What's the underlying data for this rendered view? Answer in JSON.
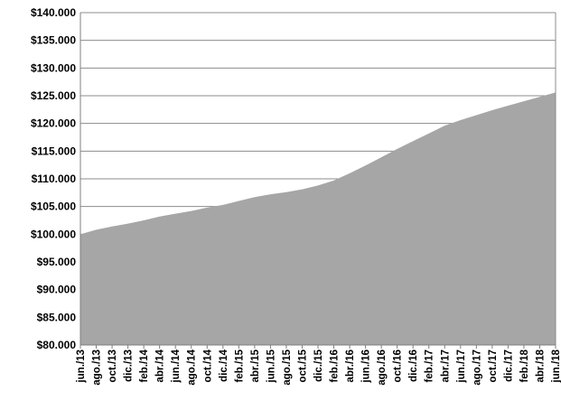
{
  "chart_data": {
    "type": "area",
    "title": "",
    "xlabel": "",
    "ylabel": "",
    "ylim": [
      80000,
      140000
    ],
    "y_ticks": [
      80000,
      85000,
      90000,
      95000,
      100000,
      105000,
      110000,
      115000,
      120000,
      125000,
      130000,
      135000,
      140000
    ],
    "y_tick_labels": [
      "$80.000",
      "$85.000",
      "$90.000",
      "$95.000",
      "$100.000",
      "$105.000",
      "$110.000",
      "$115.000",
      "$120.000",
      "$125.000",
      "$130.000",
      "$135.000",
      "$140.000"
    ],
    "grid": true,
    "legend": "none",
    "fill_color": "#a6a6a6",
    "categories": [
      "jun./13",
      "ago./13",
      "oct./13",
      "dic./13",
      "feb./14",
      "abr./14",
      "jun./14",
      "ago./14",
      "oct./14",
      "dic./14",
      "feb./15",
      "abr./15",
      "jun./15",
      "ago./15",
      "oct./15",
      "dic./15",
      "feb./16",
      "abr./16",
      "jun./16",
      "ago./16",
      "oct./16",
      "dic./16",
      "feb./17",
      "abr./17",
      "jun./17",
      "ago./17",
      "oct./17",
      "dic./17",
      "feb./18",
      "abr./18",
      "jun./18"
    ],
    "values": [
      100000,
      100800,
      101400,
      101900,
      102500,
      103200,
      103700,
      104200,
      104800,
      105300,
      106000,
      106700,
      107200,
      107600,
      108100,
      108800,
      109700,
      111000,
      112400,
      113900,
      115400,
      116800,
      118200,
      119600,
      120600,
      121500,
      122400,
      123200,
      124000,
      124800,
      125600
    ]
  }
}
